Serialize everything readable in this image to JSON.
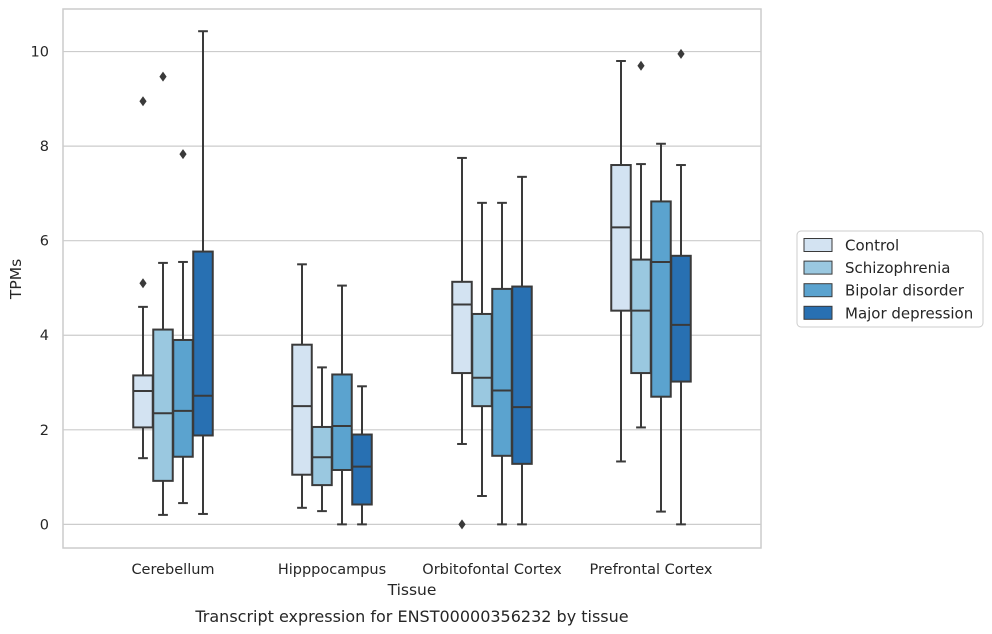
{
  "chart_data": {
    "type": "box",
    "xlabel": "Tissue",
    "ylabel": "TPMs",
    "caption": "Transcript expression for ENST00000356232 by tissue",
    "ylim": [
      -0.5,
      10.9
    ],
    "yticks": [
      0,
      2,
      4,
      6,
      8,
      10
    ],
    "grid": true,
    "legend_position": "right",
    "categories": [
      "Cerebellum",
      "Hipppocampus",
      "Orbitofontal Cortex",
      "Prefrontal Cortex"
    ],
    "series": [
      {
        "name": "Control",
        "color": "#d3e3f2",
        "boxes": [
          {
            "whisker_low": 1.4,
            "q1": 2.05,
            "median": 2.82,
            "q3": 3.15,
            "whisker_high": 4.6,
            "outliers": [
              5.1,
              8.95
            ]
          },
          {
            "whisker_low": 0.35,
            "q1": 1.05,
            "median": 2.5,
            "q3": 3.8,
            "whisker_high": 5.5,
            "outliers": []
          },
          {
            "whisker_low": 1.7,
            "q1": 3.2,
            "median": 4.65,
            "q3": 5.13,
            "whisker_high": 7.75,
            "outliers": [
              0.0
            ]
          },
          {
            "whisker_low": 1.33,
            "q1": 4.52,
            "median": 6.28,
            "q3": 7.6,
            "whisker_high": 9.8,
            "outliers": []
          }
        ]
      },
      {
        "name": "Schizophrenia",
        "color": "#9ac8e0",
        "boxes": [
          {
            "whisker_low": 0.2,
            "q1": 0.92,
            "median": 2.35,
            "q3": 4.12,
            "whisker_high": 5.53,
            "outliers": [
              9.47
            ]
          },
          {
            "whisker_low": 0.28,
            "q1": 0.83,
            "median": 1.42,
            "q3": 2.06,
            "whisker_high": 3.32,
            "outliers": []
          },
          {
            "whisker_low": 0.6,
            "q1": 2.5,
            "median": 3.1,
            "q3": 4.45,
            "whisker_high": 6.8,
            "outliers": []
          },
          {
            "whisker_low": 2.05,
            "q1": 3.2,
            "median": 4.52,
            "q3": 5.6,
            "whisker_high": 7.62,
            "outliers": [
              9.7
            ]
          }
        ]
      },
      {
        "name": "Bipolar disorder",
        "color": "#5ba3cf",
        "boxes": [
          {
            "whisker_low": 0.45,
            "q1": 1.43,
            "median": 2.4,
            "q3": 3.9,
            "whisker_high": 5.55,
            "outliers": [
              7.83
            ]
          },
          {
            "whisker_low": 0.0,
            "q1": 1.15,
            "median": 2.08,
            "q3": 3.17,
            "whisker_high": 5.05,
            "outliers": []
          },
          {
            "whisker_low": 0.0,
            "q1": 1.45,
            "median": 2.83,
            "q3": 4.98,
            "whisker_high": 6.8,
            "outliers": []
          },
          {
            "whisker_low": 0.27,
            "q1": 2.7,
            "median": 5.55,
            "q3": 6.83,
            "whisker_high": 8.05,
            "outliers": []
          }
        ]
      },
      {
        "name": "Major depression",
        "color": "#2870b2",
        "boxes": [
          {
            "whisker_low": 0.22,
            "q1": 1.88,
            "median": 2.72,
            "q3": 5.77,
            "whisker_high": 10.43,
            "outliers": []
          },
          {
            "whisker_low": 0.0,
            "q1": 0.42,
            "median": 1.22,
            "q3": 1.9,
            "whisker_high": 2.92,
            "outliers": []
          },
          {
            "whisker_low": 0.0,
            "q1": 1.28,
            "median": 2.48,
            "q3": 5.03,
            "whisker_high": 7.35,
            "outliers": []
          },
          {
            "whisker_low": 0.0,
            "q1": 3.02,
            "median": 4.22,
            "q3": 5.68,
            "whisker_high": 7.6,
            "outliers": [
              9.95
            ]
          }
        ]
      }
    ]
  }
}
